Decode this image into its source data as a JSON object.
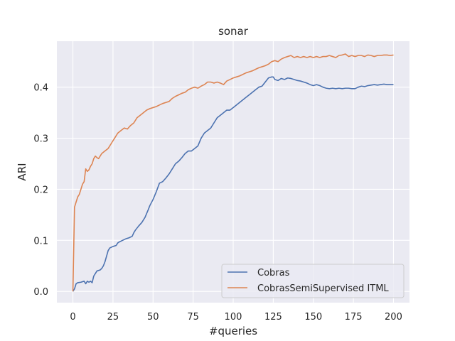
{
  "chart_data": {
    "type": "line",
    "title": "sonar",
    "xlabel": "#queries",
    "ylabel": "ARI",
    "xlim": [
      -10,
      210
    ],
    "ylim": [
      -0.022,
      0.49
    ],
    "xticks": [
      0,
      25,
      50,
      75,
      100,
      125,
      150,
      175,
      200
    ],
    "xtick_labels": [
      "0",
      "25",
      "50",
      "75",
      "100",
      "125",
      "150",
      "175",
      "200"
    ],
    "yticks": [
      0.0,
      0.1,
      0.2,
      0.3,
      0.4
    ],
    "ytick_labels": [
      "0.0",
      "0.1",
      "0.2",
      "0.3",
      "0.4"
    ],
    "grid": true,
    "legend_position": "lower-right",
    "colors": {
      "background": "#eaeaf2",
      "grid": "#ffffff",
      "text": "#262626"
    },
    "series": [
      {
        "name": "Cobras",
        "color": "#4c72b0",
        "x": [
          0,
          1,
          2,
          3,
          5,
          7,
          8,
          9,
          10,
          11,
          12,
          13,
          14,
          15,
          17,
          18,
          19,
          20,
          22,
          23,
          25,
          27,
          28,
          29,
          31,
          33,
          35,
          37,
          38,
          39,
          41,
          43,
          45,
          47,
          48,
          50,
          52,
          54,
          56,
          58,
          60,
          62,
          64,
          66,
          68,
          70,
          72,
          74,
          76,
          78,
          80,
          82,
          84,
          86,
          88,
          90,
          92,
          94,
          96,
          98,
          100,
          102,
          104,
          106,
          108,
          110,
          112,
          114,
          116,
          118,
          120,
          122,
          124,
          125,
          126,
          128,
          130,
          132,
          134,
          136,
          138,
          140,
          142,
          144,
          146,
          148,
          150,
          152,
          154,
          156,
          158,
          160,
          162,
          164,
          166,
          168,
          170,
          172,
          174,
          176,
          178,
          180,
          182,
          184,
          186,
          188,
          190,
          192,
          194,
          196,
          198,
          200
        ],
        "y": [
          0.0,
          0.005,
          0.015,
          0.017,
          0.018,
          0.02,
          0.015,
          0.02,
          0.018,
          0.02,
          0.017,
          0.03,
          0.035,
          0.04,
          0.042,
          0.045,
          0.05,
          0.058,
          0.08,
          0.085,
          0.088,
          0.09,
          0.095,
          0.097,
          0.1,
          0.103,
          0.105,
          0.108,
          0.115,
          0.12,
          0.128,
          0.135,
          0.145,
          0.16,
          0.168,
          0.18,
          0.195,
          0.212,
          0.215,
          0.222,
          0.23,
          0.24,
          0.25,
          0.255,
          0.262,
          0.27,
          0.275,
          0.275,
          0.28,
          0.285,
          0.3,
          0.31,
          0.315,
          0.32,
          0.33,
          0.34,
          0.345,
          0.35,
          0.355,
          0.355,
          0.36,
          0.365,
          0.37,
          0.375,
          0.38,
          0.385,
          0.39,
          0.395,
          0.4,
          0.402,
          0.41,
          0.418,
          0.42,
          0.42,
          0.415,
          0.413,
          0.417,
          0.415,
          0.418,
          0.417,
          0.415,
          0.413,
          0.412,
          0.41,
          0.408,
          0.405,
          0.403,
          0.405,
          0.403,
          0.4,
          0.398,
          0.397,
          0.398,
          0.397,
          0.398,
          0.397,
          0.398,
          0.398,
          0.397,
          0.397,
          0.4,
          0.402,
          0.401,
          0.403,
          0.404,
          0.405,
          0.404,
          0.405,
          0.406,
          0.405,
          0.405,
          0.405
        ]
      },
      {
        "name": "CobrasSemiSupervised ITML",
        "color": "#dd8452",
        "x": [
          0,
          1,
          2,
          3,
          4,
          5,
          6,
          7,
          8,
          9,
          10,
          11,
          12,
          13,
          14,
          15,
          16,
          18,
          20,
          22,
          24,
          26,
          28,
          30,
          32,
          34,
          36,
          38,
          40,
          42,
          44,
          46,
          48,
          50,
          52,
          54,
          56,
          58,
          60,
          62,
          64,
          66,
          68,
          70,
          72,
          74,
          76,
          78,
          80,
          82,
          84,
          86,
          88,
          90,
          92,
          94,
          96,
          98,
          100,
          102,
          104,
          106,
          108,
          110,
          112,
          114,
          116,
          118,
          120,
          122,
          124,
          126,
          128,
          130,
          132,
          134,
          136,
          138,
          140,
          142,
          144,
          146,
          148,
          150,
          152,
          154,
          156,
          158,
          160,
          162,
          164,
          166,
          168,
          170,
          172,
          174,
          176,
          178,
          180,
          182,
          184,
          186,
          188,
          190,
          192,
          194,
          196,
          198,
          200
        ],
        "y": [
          0.0,
          0.165,
          0.175,
          0.185,
          0.19,
          0.2,
          0.21,
          0.215,
          0.24,
          0.235,
          0.238,
          0.245,
          0.25,
          0.26,
          0.265,
          0.262,
          0.26,
          0.27,
          0.275,
          0.28,
          0.29,
          0.3,
          0.31,
          0.315,
          0.32,
          0.318,
          0.325,
          0.33,
          0.34,
          0.345,
          0.35,
          0.355,
          0.358,
          0.36,
          0.362,
          0.365,
          0.368,
          0.37,
          0.372,
          0.378,
          0.382,
          0.385,
          0.388,
          0.39,
          0.395,
          0.398,
          0.4,
          0.398,
          0.402,
          0.405,
          0.41,
          0.41,
          0.408,
          0.41,
          0.408,
          0.405,
          0.412,
          0.415,
          0.418,
          0.42,
          0.422,
          0.425,
          0.428,
          0.43,
          0.432,
          0.435,
          0.438,
          0.44,
          0.442,
          0.445,
          0.45,
          0.452,
          0.45,
          0.455,
          0.458,
          0.46,
          0.462,
          0.458,
          0.46,
          0.458,
          0.46,
          0.458,
          0.46,
          0.458,
          0.46,
          0.458,
          0.46,
          0.46,
          0.462,
          0.46,
          0.458,
          0.462,
          0.463,
          0.465,
          0.46,
          0.462,
          0.46,
          0.462,
          0.462,
          0.46,
          0.463,
          0.462,
          0.46,
          0.462,
          0.462,
          0.463,
          0.463,
          0.462,
          0.463
        ]
      }
    ]
  }
}
